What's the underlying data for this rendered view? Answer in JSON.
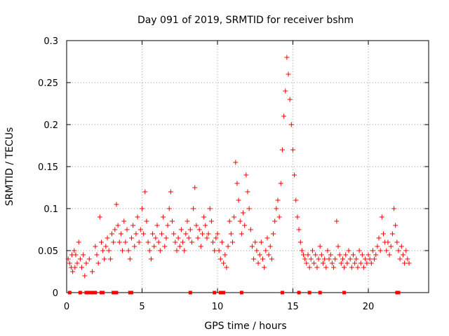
{
  "chart_data": {
    "type": "scatter",
    "title": "Day 091 of 2019, SRMTID for receiver bshm",
    "xlabel": "GPS time / hours",
    "ylabel": "SRMTID / TECUs",
    "xlim": [
      0,
      24
    ],
    "ylim": [
      0,
      0.3
    ],
    "xticks": [
      0,
      5,
      10,
      15,
      20
    ],
    "xtick_labels": [
      "0",
      "5",
      "10",
      "15",
      "20"
    ],
    "yticks": [
      0,
      0.05,
      0.1,
      0.15,
      0.2,
      0.25,
      0.3
    ],
    "ytick_labels": [
      "0",
      "0.05",
      "0.1",
      "0.15",
      "0.2",
      "0.25",
      "0.3"
    ],
    "grid": true,
    "marker": "+",
    "color": "#ff0000",
    "series": [
      {
        "name": "SRMTID",
        "points": [
          [
            0.1,
            0.04
          ],
          [
            0.2,
            0.035
          ],
          [
            0.3,
            0.03
          ],
          [
            0.35,
            0.045
          ],
          [
            0.4,
            0.025
          ],
          [
            0.5,
            0.05
          ],
          [
            0.55,
            0.03
          ],
          [
            0.6,
            0.045
          ],
          [
            0.7,
            0.035
          ],
          [
            0.8,
            0.06
          ],
          [
            0.9,
            0.04
          ],
          [
            1.0,
            0.03
          ],
          [
            1.1,
            0.045
          ],
          [
            1.2,
            0.02
          ],
          [
            1.3,
            0.035
          ],
          [
            1.5,
            0.04
          ],
          [
            1.7,
            0.025
          ],
          [
            1.9,
            0.055
          ],
          [
            2.0,
            0.045
          ],
          [
            2.1,
            0.035
          ],
          [
            2.2,
            0.09
          ],
          [
            2.3,
            0.06
          ],
          [
            2.4,
            0.05
          ],
          [
            2.5,
            0.04
          ],
          [
            2.6,
            0.055
          ],
          [
            2.7,
            0.065
          ],
          [
            2.8,
            0.05
          ],
          [
            2.9,
            0.04
          ],
          [
            3.0,
            0.07
          ],
          [
            3.1,
            0.06
          ],
          [
            3.2,
            0.075
          ],
          [
            3.3,
            0.105
          ],
          [
            3.4,
            0.08
          ],
          [
            3.5,
            0.06
          ],
          [
            3.6,
            0.07
          ],
          [
            3.7,
            0.05
          ],
          [
            3.8,
            0.085
          ],
          [
            3.9,
            0.06
          ],
          [
            4.0,
            0.075
          ],
          [
            4.1,
            0.05
          ],
          [
            4.2,
            0.04
          ],
          [
            4.3,
            0.065
          ],
          [
            4.4,
            0.08
          ],
          [
            4.5,
            0.055
          ],
          [
            4.6,
            0.07
          ],
          [
            4.7,
            0.09
          ],
          [
            4.8,
            0.06
          ],
          [
            4.9,
            0.075
          ],
          [
            5.0,
            0.1
          ],
          [
            5.1,
            0.07
          ],
          [
            5.2,
            0.12
          ],
          [
            5.3,
            0.085
          ],
          [
            5.4,
            0.06
          ],
          [
            5.5,
            0.05
          ],
          [
            5.6,
            0.04
          ],
          [
            5.7,
            0.07
          ],
          [
            5.8,
            0.055
          ],
          [
            5.9,
            0.065
          ],
          [
            6.0,
            0.08
          ],
          [
            6.1,
            0.06
          ],
          [
            6.2,
            0.05
          ],
          [
            6.3,
            0.07
          ],
          [
            6.4,
            0.09
          ],
          [
            6.5,
            0.055
          ],
          [
            6.6,
            0.065
          ],
          [
            6.7,
            0.08
          ],
          [
            6.8,
            0.1
          ],
          [
            6.9,
            0.12
          ],
          [
            7.0,
            0.085
          ],
          [
            7.1,
            0.07
          ],
          [
            7.2,
            0.06
          ],
          [
            7.3,
            0.05
          ],
          [
            7.4,
            0.065
          ],
          [
            7.5,
            0.055
          ],
          [
            7.6,
            0.075
          ],
          [
            7.7,
            0.06
          ],
          [
            7.8,
            0.05
          ],
          [
            7.9,
            0.07
          ],
          [
            8.0,
            0.085
          ],
          [
            8.1,
            0.065
          ],
          [
            8.2,
            0.075
          ],
          [
            8.3,
            0.06
          ],
          [
            8.4,
            0.1
          ],
          [
            8.5,
            0.125
          ],
          [
            8.6,
            0.08
          ],
          [
            8.7,
            0.065
          ],
          [
            8.8,
            0.075
          ],
          [
            8.9,
            0.055
          ],
          [
            9.0,
            0.07
          ],
          [
            9.1,
            0.09
          ],
          [
            9.2,
            0.08
          ],
          [
            9.3,
            0.065
          ],
          [
            9.4,
            0.07
          ],
          [
            9.5,
            0.1
          ],
          [
            9.6,
            0.085
          ],
          [
            9.7,
            0.06
          ],
          [
            9.8,
            0.05
          ],
          [
            9.9,
            0.065
          ],
          [
            10.0,
            0.07
          ],
          [
            10.1,
            0.05
          ],
          [
            10.2,
            0.04
          ],
          [
            10.3,
            0.06
          ],
          [
            10.4,
            0.035
          ],
          [
            10.5,
            0.045
          ],
          [
            10.6,
            0.03
          ],
          [
            10.7,
            0.055
          ],
          [
            10.8,
            0.085
          ],
          [
            10.9,
            0.07
          ],
          [
            11.0,
            0.06
          ],
          [
            11.1,
            0.09
          ],
          [
            11.2,
            0.155
          ],
          [
            11.3,
            0.13
          ],
          [
            11.4,
            0.11
          ],
          [
            11.5,
            0.085
          ],
          [
            11.6,
            0.07
          ],
          [
            11.7,
            0.095
          ],
          [
            11.8,
            0.08
          ],
          [
            11.9,
            0.14
          ],
          [
            12.0,
            0.12
          ],
          [
            12.1,
            0.1
          ],
          [
            12.2,
            0.075
          ],
          [
            12.3,
            0.055
          ],
          [
            12.4,
            0.04
          ],
          [
            12.5,
            0.06
          ],
          [
            12.6,
            0.05
          ],
          [
            12.7,
            0.035
          ],
          [
            12.8,
            0.045
          ],
          [
            12.9,
            0.06
          ],
          [
            13.0,
            0.04
          ],
          [
            13.1,
            0.03
          ],
          [
            13.2,
            0.05
          ],
          [
            13.3,
            0.065
          ],
          [
            13.4,
            0.045
          ],
          [
            13.5,
            0.055
          ],
          [
            13.6,
            0.04
          ],
          [
            13.7,
            0.07
          ],
          [
            13.8,
            0.085
          ],
          [
            13.9,
            0.1
          ],
          [
            14.0,
            0.11
          ],
          [
            14.1,
            0.09
          ],
          [
            14.2,
            0.13
          ],
          [
            14.3,
            0.17
          ],
          [
            14.4,
            0.21
          ],
          [
            14.5,
            0.24
          ],
          [
            14.6,
            0.28
          ],
          [
            14.7,
            0.26
          ],
          [
            14.8,
            0.23
          ],
          [
            14.9,
            0.2
          ],
          [
            15.0,
            0.17
          ],
          [
            15.1,
            0.14
          ],
          [
            15.2,
            0.11
          ],
          [
            15.3,
            0.09
          ],
          [
            15.4,
            0.075
          ],
          [
            15.5,
            0.06
          ],
          [
            15.6,
            0.05
          ],
          [
            15.7,
            0.045
          ],
          [
            15.8,
            0.04
          ],
          [
            15.9,
            0.035
          ],
          [
            16.0,
            0.045
          ],
          [
            16.1,
            0.03
          ],
          [
            16.2,
            0.04
          ],
          [
            16.3,
            0.05
          ],
          [
            16.4,
            0.035
          ],
          [
            16.5,
            0.045
          ],
          [
            16.6,
            0.03
          ],
          [
            16.7,
            0.04
          ],
          [
            16.8,
            0.055
          ],
          [
            16.9,
            0.045
          ],
          [
            17.0,
            0.035
          ],
          [
            17.1,
            0.04
          ],
          [
            17.2,
            0.03
          ],
          [
            17.3,
            0.05
          ],
          [
            17.4,
            0.04
          ],
          [
            17.5,
            0.045
          ],
          [
            17.6,
            0.035
          ],
          [
            17.7,
            0.03
          ],
          [
            17.8,
            0.04
          ],
          [
            17.9,
            0.085
          ],
          [
            18.0,
            0.055
          ],
          [
            18.1,
            0.045
          ],
          [
            18.2,
            0.035
          ],
          [
            18.3,
            0.04
          ],
          [
            18.4,
            0.03
          ],
          [
            18.5,
            0.045
          ],
          [
            18.6,
            0.035
          ],
          [
            18.7,
            0.05
          ],
          [
            18.8,
            0.04
          ],
          [
            18.9,
            0.03
          ],
          [
            19.0,
            0.045
          ],
          [
            19.1,
            0.035
          ],
          [
            19.2,
            0.04
          ],
          [
            19.3,
            0.03
          ],
          [
            19.4,
            0.05
          ],
          [
            19.5,
            0.035
          ],
          [
            19.6,
            0.045
          ],
          [
            19.7,
            0.03
          ],
          [
            19.8,
            0.04
          ],
          [
            19.9,
            0.035
          ],
          [
            20.0,
            0.045
          ],
          [
            20.1,
            0.04
          ],
          [
            20.2,
            0.035
          ],
          [
            20.3,
            0.05
          ],
          [
            20.4,
            0.04
          ],
          [
            20.5,
            0.045
          ],
          [
            20.6,
            0.055
          ],
          [
            20.7,
            0.065
          ],
          [
            20.8,
            0.05
          ],
          [
            20.9,
            0.09
          ],
          [
            21.0,
            0.07
          ],
          [
            21.1,
            0.06
          ],
          [
            21.2,
            0.05
          ],
          [
            21.3,
            0.06
          ],
          [
            21.4,
            0.045
          ],
          [
            21.5,
            0.055
          ],
          [
            21.6,
            0.07
          ],
          [
            21.7,
            0.1
          ],
          [
            21.8,
            0.08
          ],
          [
            21.9,
            0.06
          ],
          [
            22.0,
            0.05
          ],
          [
            22.1,
            0.04
          ],
          [
            22.2,
            0.055
          ],
          [
            22.3,
            0.045
          ],
          [
            22.4,
            0.035
          ],
          [
            22.5,
            0.05
          ],
          [
            22.6,
            0.04
          ],
          [
            22.7,
            0.035
          ]
        ]
      }
    ],
    "baseline_markers_x": [
      0.2,
      0.9,
      1.3,
      1.5,
      1.7,
      1.9,
      2.3,
      2.4,
      3.1,
      3.3,
      4.2,
      4.3,
      8.2,
      9.8,
      10.2,
      10.4,
      11.6,
      14.3,
      15.4,
      16.1,
      16.8,
      18.4,
      21.9,
      22.0
    ]
  }
}
